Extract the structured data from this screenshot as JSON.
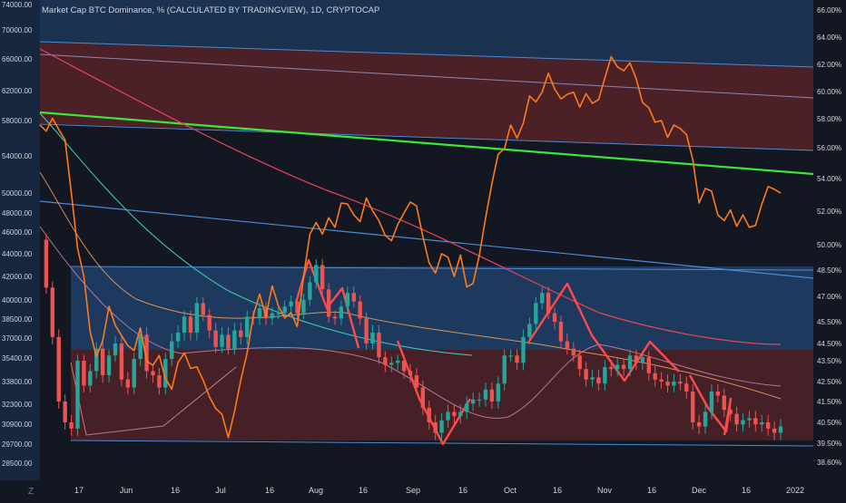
{
  "title": "Market Cap BTC Dominance, % (CALCULATED BY TRADINGVIEW), 1D, CRYPTOCAP",
  "corner_label": "Z",
  "colors": {
    "background": "#131722",
    "btc_line": "#ff7a1c",
    "dominance_candle_up": "#26a69a",
    "dominance_candle_down": "#ef5350",
    "trendline_green": "#39e83a",
    "zone_blue": "#2a63a8",
    "zone_red": "#7a2a2c",
    "channel_blue": "#4c8ad6",
    "pattern_red": "#ff4a4a"
  },
  "chart_data": {
    "type": "line",
    "x_ticks": [
      "17",
      "Jun",
      "16",
      "Jul",
      "16",
      "Aug",
      "16",
      "Sep",
      "16",
      "Oct",
      "16",
      "Nov",
      "16",
      "Dec",
      "16",
      "2022"
    ],
    "left_axis": {
      "ticks": [
        "74000.00",
        "70000.00",
        "66000.00",
        "62000.00",
        "58000.00",
        "54000.00",
        "50000.00",
        "48000.00",
        "46000.00",
        "44000.00",
        "42000.00",
        "40000.00",
        "38500.00",
        "37000.00",
        "35400.00",
        "33800.00",
        "32300.00",
        "30900.00",
        "29700.00",
        "28500.00"
      ]
    },
    "right_axis": {
      "ticks": [
        "66.00%",
        "64.00%",
        "62.00%",
        "60.00%",
        "58.00%",
        "56.00%",
        "54.00%",
        "52.00%",
        "50.00%",
        "48.50%",
        "47.00%",
        "45.50%",
        "44.50%",
        "43.50%",
        "42.50%",
        "41.50%",
        "40.50%",
        "39.50%",
        "38.60%"
      ],
      "ylim": [
        38.6,
        66.0
      ]
    },
    "series": [
      {
        "name": "",
        "axis": "left",
        "color": "#ff7a1c",
        "values": [
          57500,
          56800,
          58300,
          57000,
          55800,
          50000,
          44500,
          42000,
          37500,
          35500,
          36800,
          39500,
          38000,
          37200,
          36400,
          36000,
          37800,
          35200,
          34900,
          35600,
          34000,
          33300,
          35100,
          35800,
          34700,
          34800,
          33900,
          32800,
          32000,
          31600,
          30100,
          31800,
          33900,
          35800,
          38800,
          40500,
          38700,
          41200,
          39500,
          38600,
          39000,
          37900,
          42000,
          45800,
          47000,
          45800,
          47500,
          46500,
          49000,
          48900,
          47800,
          47100,
          49500,
          48200,
          47200,
          45700,
          45200,
          46800,
          48000,
          49100,
          48700,
          45600,
          43200,
          42300,
          44000,
          43700,
          42000,
          43900,
          41100,
          41400,
          43900,
          47500,
          51000,
          54200,
          54800,
          57500,
          56000,
          57700,
          61300,
          60500,
          61800,
          64200,
          62200,
          60900,
          61500,
          61800,
          59800,
          61600,
          60300,
          60800,
          63600,
          66300,
          65000,
          64500,
          65500,
          63500,
          60400,
          59700,
          57800,
          58000,
          56100,
          57500,
          57100,
          56400,
          53600,
          49000,
          50500,
          50200,
          47800,
          47200,
          48300,
          46600,
          47800,
          46500,
          46700,
          48900,
          50700,
          50400,
          50000
        ]
      },
      {
        "name": "",
        "axis": "right",
        "color": "#ef5350",
        "values": [
          50.3,
          47.5,
          44.8,
          41.5,
          40.5,
          40.2,
          43.5,
          42.3,
          43.0,
          44.2,
          42.8,
          43.8,
          44.5,
          42.6,
          42.2,
          43.6,
          44.9,
          43.0,
          42.8,
          42.2,
          43.6,
          44.6,
          45.0,
          45.8,
          45.0,
          46.6,
          45.9,
          45.1,
          44.3,
          44.9,
          44.2,
          45.1,
          44.8,
          45.8,
          45.7,
          46.3,
          45.7,
          46.0,
          46.0,
          46.4,
          46.7,
          46.0,
          46.8,
          47.8,
          48.8,
          47.4,
          45.8,
          45.7,
          46.4,
          47.2,
          46.7,
          45.7,
          44.5,
          45.0,
          43.7,
          43.3,
          43.4,
          43.5,
          43.0,
          42.8,
          42.2,
          41.2,
          40.5,
          40.0,
          40.6,
          41.0,
          40.8,
          41.0,
          41.4,
          41.6,
          41.6,
          42.1,
          41.5,
          42.4,
          43.8,
          43.8,
          43.4,
          44.8,
          45.4,
          46.6,
          47.2,
          46.0,
          45.5,
          44.6,
          44.2,
          43.8,
          43.1,
          42.6,
          42.7,
          42.4,
          43.2,
          43.1,
          43.3,
          43.1,
          43.8,
          43.4,
          43.7,
          42.9,
          42.6,
          42.5,
          42.3,
          42.5,
          42.4,
          42.0,
          40.5,
          40.3,
          41.0,
          42.0,
          41.8,
          41.1,
          40.9,
          40.4,
          40.6,
          40.7,
          40.4,
          40.5,
          40.2,
          40.0,
          40.3
        ]
      }
    ],
    "grid": false,
    "legend": "none"
  }
}
